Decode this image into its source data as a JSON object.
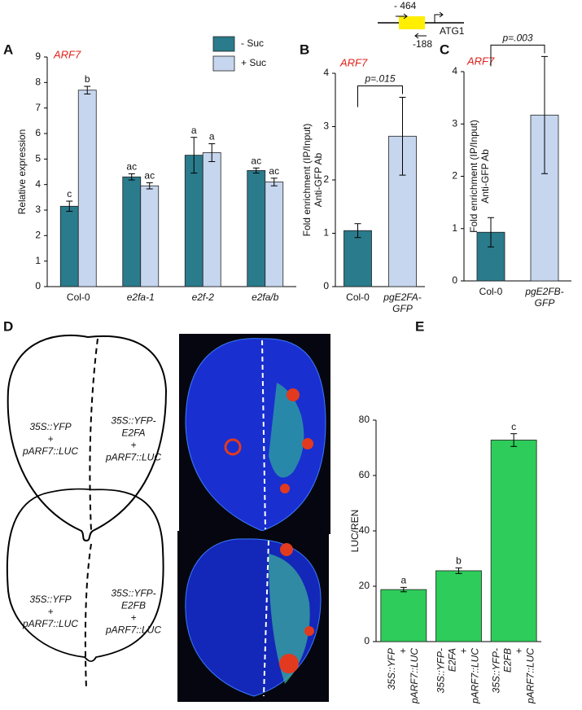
{
  "figure": {
    "panel_labels": [
      "A",
      "B",
      "C",
      "D",
      "E"
    ],
    "promoter": {
      "upstream": "- 464",
      "downstream": "-188",
      "gene": "ATG1"
    },
    "leaves": [
      {
        "left": [
          "35S::YFP",
          "+",
          "pARF7::LUC"
        ],
        "right": [
          "35S::YFP-",
          "E2FA",
          "+",
          "pARF7::LUC"
        ]
      },
      {
        "left": [
          "35S::YFP",
          "+",
          "pARF7::LUC"
        ],
        "right": [
          "35S::YFP-",
          "E2FB",
          "+",
          "pARF7::LUC"
        ]
      }
    ]
  },
  "chart_data": [
    {
      "type": "bar",
      "title": "ARF7",
      "ylabel": [
        "Relative expression"
      ],
      "categories": [
        [
          "Col-0"
        ],
        [
          "e2fa-1"
        ],
        [
          "e2f-2"
        ],
        [
          "e2fa/b"
        ]
      ],
      "series": [
        {
          "name": "- Suc",
          "color": "#2a7b8c",
          "values": [
            3.15,
            4.3,
            5.15,
            4.55
          ],
          "errors": [
            0.2,
            0.12,
            0.7,
            0.1
          ],
          "letters": [
            "c",
            "ac",
            "a",
            "ac"
          ]
        },
        {
          "name": "+ Suc",
          "color": "#c6d6ee",
          "values": [
            7.7,
            3.95,
            5.25,
            4.1
          ],
          "errors": [
            0.15,
            0.12,
            0.35,
            0.15
          ],
          "letters": [
            "b",
            "ac",
            "a",
            "ac"
          ]
        }
      ],
      "ylim": [
        0,
        9
      ],
      "yticks": [
        0,
        1,
        2,
        3,
        4,
        5,
        6,
        7,
        8,
        9
      ]
    },
    {
      "type": "bar",
      "title": "ARF7",
      "ylabel": [
        "Fold enrichment (IP/Input)",
        "Anti-GFP Ab"
      ],
      "categories": [
        [
          "Col-0"
        ],
        [
          "pgE2FA-",
          "GFP"
        ]
      ],
      "values": [
        1.05,
        2.82
      ],
      "errors": [
        0.13,
        0.73
      ],
      "colors": [
        "#2a7b8c",
        "#c6d6ee"
      ],
      "annotation": "p=.015",
      "ylim": [
        0,
        4
      ],
      "yticks": [
        0,
        1,
        2,
        3,
        4
      ]
    },
    {
      "type": "bar",
      "title": "ARF7",
      "ylabel": [
        "Fold enrichment (IP/Input)",
        "Anti-GFP Ab"
      ],
      "categories": [
        [
          "Col-0"
        ],
        [
          "pgE2FB-",
          "GFP"
        ]
      ],
      "values": [
        0.93,
        3.17
      ],
      "errors": [
        0.28,
        1.12
      ],
      "colors": [
        "#2a7b8c",
        "#c6d6ee"
      ],
      "annotation": "p=.003",
      "ylim": [
        0,
        4
      ],
      "yticks": [
        0,
        1,
        2,
        3,
        4
      ]
    },
    {
      "type": "bar",
      "ylabel": [
        "LUC/REN"
      ],
      "categories": [
        [
          "35S::YFP",
          "+",
          "pARF7::LUC"
        ],
        [
          "35S::YFP-",
          "E2FA",
          "+",
          "pARF7::LUC"
        ],
        [
          "35S::YFP-",
          "E2FB",
          "+",
          "pARF7::LUC"
        ]
      ],
      "values": [
        18.8,
        25.6,
        72.8
      ],
      "errors": [
        0.8,
        1.0,
        2.3
      ],
      "letters": [
        "a",
        "b",
        "c"
      ],
      "colors": [
        "#2ecc5a",
        "#2ecc5a",
        "#2ecc5a"
      ],
      "ylim": [
        0,
        80
      ],
      "yticks": [
        0,
        20,
        40,
        60,
        80
      ]
    }
  ]
}
